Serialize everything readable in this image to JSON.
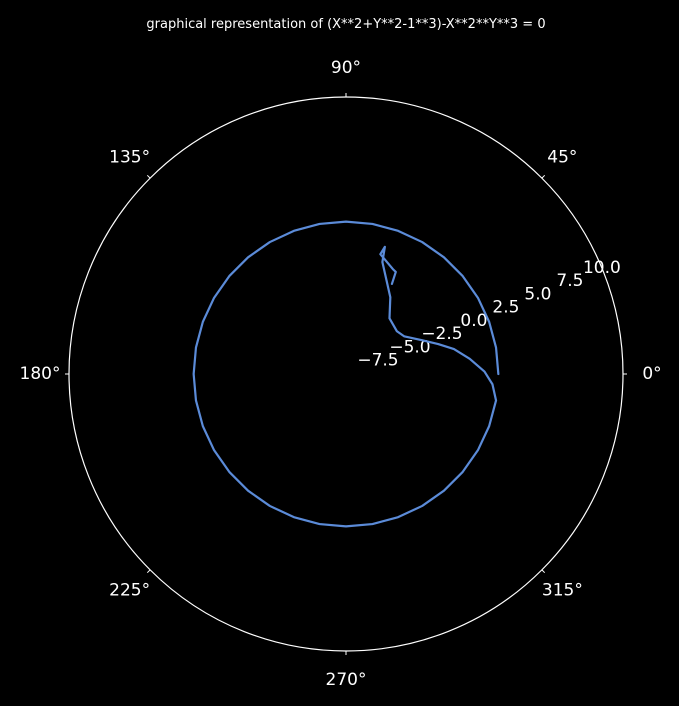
{
  "chart_data": {
    "type": "line",
    "projection": "polar",
    "title": "graphical representation of (X**2+Y**2-1**3)-X**2**Y**3 = 0",
    "theta_ticks": [
      {
        "deg": 0,
        "label": "0°"
      },
      {
        "deg": 45,
        "label": "45°"
      },
      {
        "deg": 90,
        "label": "90°"
      },
      {
        "deg": 135,
        "label": "135°"
      },
      {
        "deg": 180,
        "label": "180°"
      },
      {
        "deg": 225,
        "label": "225°"
      },
      {
        "deg": 270,
        "label": "270°"
      },
      {
        "deg": 315,
        "label": "315°"
      }
    ],
    "r_ticks": [
      {
        "value": -7.5,
        "label": "−7.5"
      },
      {
        "value": -5.0,
        "label": "−5.0"
      },
      {
        "value": -2.5,
        "label": "−2.5"
      },
      {
        "value": 0.0,
        "label": "0.0"
      },
      {
        "value": 2.5,
        "label": "2.5"
      },
      {
        "value": 5.0,
        "label": "5.0"
      },
      {
        "value": 7.5,
        "label": "7.5"
      },
      {
        "value": 10.0,
        "label": "10.0"
      }
    ],
    "rlim": [
      -10,
      10
    ],
    "r_label_angle_deg": 22.5,
    "grid": false,
    "colors": {
      "background": "#000000",
      "axes": "#ffffff",
      "line": "#5b8bd8"
    },
    "series": [
      {
        "points": [
          {
            "theta": 0,
            "r": 1.0
          },
          {
            "theta": 10,
            "r": 1.0
          },
          {
            "theta": 20,
            "r": 1.0
          },
          {
            "theta": 30,
            "r": 1.0
          },
          {
            "theta": 40,
            "r": 1.0
          },
          {
            "theta": 50,
            "r": 1.0
          },
          {
            "theta": 60,
            "r": 1.0
          },
          {
            "theta": 70,
            "r": 1.0
          },
          {
            "theta": 80,
            "r": 1.0
          },
          {
            "theta": 90,
            "r": 1.0
          },
          {
            "theta": 100,
            "r": 1.0
          },
          {
            "theta": 110,
            "r": 1.0
          },
          {
            "theta": 120,
            "r": 1.0
          },
          {
            "theta": 130,
            "r": 1.0
          },
          {
            "theta": 140,
            "r": 1.0
          },
          {
            "theta": 150,
            "r": 1.0
          },
          {
            "theta": 160,
            "r": 1.0
          },
          {
            "theta": 170,
            "r": 1.0
          },
          {
            "theta": 180,
            "r": 1.0
          },
          {
            "theta": 190,
            "r": 1.0
          },
          {
            "theta": 200,
            "r": 1.0
          },
          {
            "theta": 210,
            "r": 1.0
          },
          {
            "theta": 220,
            "r": 1.0
          },
          {
            "theta": 230,
            "r": 1.0
          },
          {
            "theta": 240,
            "r": 1.0
          },
          {
            "theta": 250,
            "r": 1.0
          },
          {
            "theta": 260,
            "r": 1.0
          },
          {
            "theta": 270,
            "r": 1.0
          },
          {
            "theta": 280,
            "r": 1.0
          },
          {
            "theta": 290,
            "r": 1.0
          },
          {
            "theta": 300,
            "r": 1.0
          },
          {
            "theta": 310,
            "r": 1.0
          },
          {
            "theta": 320,
            "r": 1.0
          },
          {
            "theta": 330,
            "r": 1.0
          },
          {
            "theta": 340,
            "r": 1.0
          },
          {
            "theta": 350,
            "r": 1.0
          },
          {
            "theta": 356,
            "r": 0.6
          },
          {
            "theta": 1,
            "r": 0.0
          },
          {
            "theta": 7,
            "r": -1.0
          },
          {
            "theta": 13,
            "r": -2.0
          },
          {
            "theta": 18,
            "r": -3.0
          },
          {
            "theta": 24,
            "r": -4.0
          },
          {
            "theta": 33,
            "r": -5.0
          },
          {
            "theta": 40,
            "r": -5.2
          },
          {
            "theta": 52,
            "r": -4.9
          },
          {
            "theta": 60,
            "r": -3.6
          },
          {
            "theta": 72,
            "r": -1.5
          },
          {
            "theta": 73,
            "r": -0.4
          },
          {
            "theta": 74,
            "r": -1.0
          },
          {
            "theta": 66,
            "r": -1.7
          },
          {
            "theta": 64,
            "r": -1.8
          },
          {
            "theta": 63,
            "r": -2.7
          }
        ]
      }
    ]
  }
}
